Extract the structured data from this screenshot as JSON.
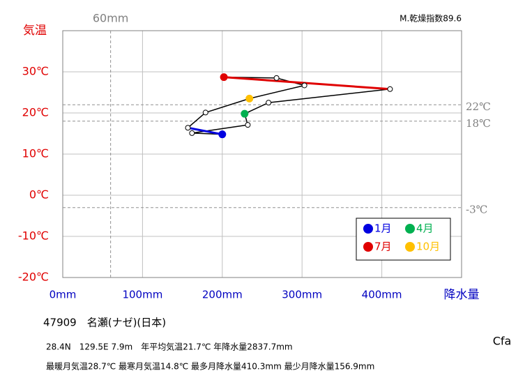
{
  "chart_data": {
    "type": "line",
    "ylabel": "気温",
    "xlabel": "降水量",
    "dryness": "M.乾燥指数89.6",
    "x": [
      200,
      162,
      232,
      228,
      258,
      410.3,
      202,
      268,
      303,
      234,
      179,
      156.9
    ],
    "series": [
      {
        "color": "#000000",
        "values": [
          14.8,
          15.1,
          17.1,
          19.8,
          22.5,
          25.8,
          28.7,
          28.5,
          26.7,
          23.5,
          20.1,
          16.4
        ]
      }
    ],
    "marker_colors": [
      "#0000e0",
      "#ffffff",
      "#ffffff",
      "#00b050",
      "#ffffff",
      "#ffffff",
      "#e00000",
      "#ffffff",
      "#ffffff",
      "#ffc000",
      "#ffffff",
      "#ffffff"
    ],
    "segment_colors": [
      "#0000e0",
      null,
      null,
      null,
      null,
      null,
      "#e00000",
      null,
      null,
      null,
      null,
      null
    ],
    "xlim": [
      0,
      500
    ],
    "ylim": [
      -20,
      40
    ],
    "xticks": [
      {
        "value": 0,
        "label": "0mm"
      },
      {
        "value": 100,
        "label": "100mm"
      },
      {
        "value": 200,
        "label": "200mm"
      },
      {
        "value": 300,
        "label": "300mm"
      },
      {
        "value": 400,
        "label": "400mm"
      }
    ],
    "yticks": [
      {
        "value": -20,
        "label": "-20℃"
      },
      {
        "value": -10,
        "label": "-10℃"
      },
      {
        "value": 0,
        "label": "0℃"
      },
      {
        "value": 10,
        "label": "10℃"
      },
      {
        "value": 20,
        "label": "20℃"
      },
      {
        "value": 30,
        "label": "30℃"
      }
    ],
    "hlines": [
      {
        "value": 22,
        "label": "22℃"
      },
      {
        "value": 18,
        "label": "18℃"
      },
      {
        "value": -3,
        "label": "-3℃"
      }
    ],
    "vline": {
      "value": 60,
      "label": "60mm"
    },
    "grid": true,
    "legend": [
      {
        "name": "1月",
        "color": "#0000e0"
      },
      {
        "name": "4月",
        "color": "#00b050"
      },
      {
        "name": "7月",
        "color": "#e00000"
      },
      {
        "name": "10月",
        "color": "#ffc000"
      }
    ],
    "station": "47909　名瀬(ナゼ)(日本)",
    "info1": "28.4N　129.5E 7.9m　年平均気温21.7℃ 年降水量2837.7mm",
    "info2": "最暖月気温28.7℃ 最寒月気温14.8℃ 最多月降水量410.3mm 最少月降水量156.9mm",
    "climate": "Cfa"
  }
}
